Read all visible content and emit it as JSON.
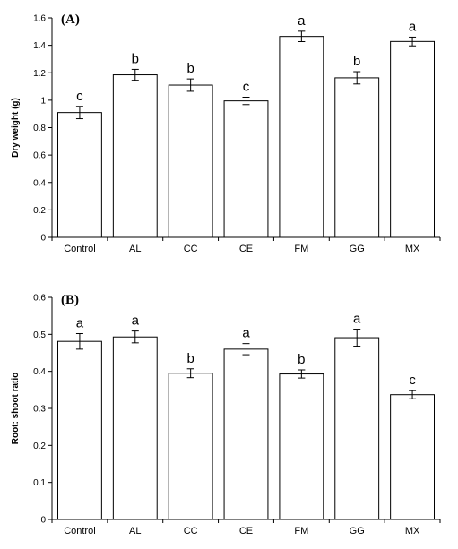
{
  "chart_data": [
    {
      "type": "bar",
      "panel_label": "(A)",
      "ylabel": "Dry weight (g)",
      "xlabel": "",
      "categories": [
        "Control",
        "AL",
        "CC",
        "CE",
        "FM",
        "GG",
        "MX"
      ],
      "values": [
        0.91,
        1.185,
        1.11,
        0.995,
        1.465,
        1.163,
        1.428
      ],
      "errors": [
        0.045,
        0.04,
        0.045,
        0.027,
        0.038,
        0.045,
        0.032
      ],
      "significance": [
        "c",
        "b",
        "b",
        "c",
        "a",
        "b",
        "a"
      ],
      "ylim": [
        0,
        1.6
      ],
      "yticks": [
        0,
        0.2,
        0.4,
        0.6,
        0.8,
        1,
        1.2,
        1.4,
        1.6
      ],
      "ytick_labels": [
        "0",
        "0.2",
        "0.4",
        "0.6",
        "0.8",
        "1",
        "1.2",
        "1.4",
        "1.6"
      ],
      "grid": false,
      "colors": {
        "bar_fill": "#ffffff",
        "bar_stroke": "#000000"
      }
    },
    {
      "type": "bar",
      "panel_label": "(B)",
      "ylabel": "Root: shoot ratio",
      "xlabel": "",
      "categories": [
        "Control",
        "AL",
        "CC",
        "CE",
        "FM",
        "GG",
        "MX"
      ],
      "values": [
        0.481,
        0.493,
        0.395,
        0.46,
        0.393,
        0.491,
        0.337
      ],
      "errors": [
        0.021,
        0.016,
        0.012,
        0.015,
        0.011,
        0.023,
        0.011
      ],
      "significance": [
        "a",
        "a",
        "b",
        "a",
        "b",
        "a",
        "c"
      ],
      "ylim": [
        0,
        0.6
      ],
      "yticks": [
        0,
        0.1,
        0.2,
        0.3,
        0.4,
        0.5,
        0.6
      ],
      "ytick_labels": [
        "0",
        "0.1",
        "0.2",
        "0.3",
        "0.4",
        "0.5",
        "0.6"
      ],
      "grid": false,
      "colors": {
        "bar_fill": "#ffffff",
        "bar_stroke": "#000000"
      }
    }
  ]
}
